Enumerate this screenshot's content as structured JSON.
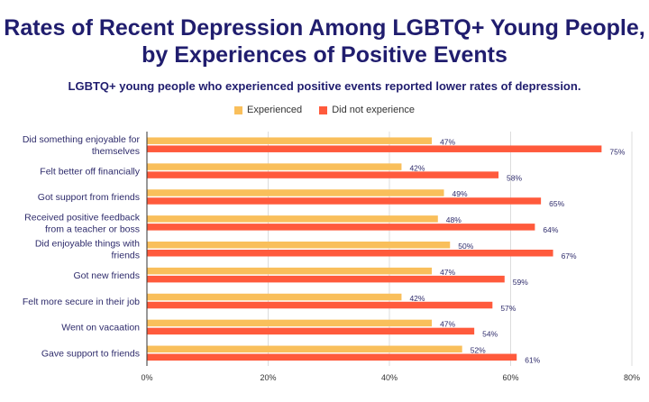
{
  "chart_data": {
    "type": "bar",
    "orientation": "horizontal",
    "title": "Rates of Recent Depression Among LGBTQ+ Young People, by Experiences of Positive Events",
    "subtitle": "LGBTQ+ young people who experienced positive events reported lower rates of depression.",
    "categories": [
      [
        "Did something enjoyable for",
        "themselves"
      ],
      [
        "Felt better off financially"
      ],
      [
        "Got support from friends"
      ],
      [
        "Received positive feedback",
        "from a teacher or boss"
      ],
      [
        "Did enjoyable things with",
        "friends"
      ],
      [
        "Got new friends"
      ],
      [
        "Felt more secure in their job"
      ],
      [
        "Went on vacaation"
      ],
      [
        "Gave support to friends"
      ]
    ],
    "series": [
      {
        "name": "Experienced",
        "color": "#f9bf5b",
        "values": [
          47,
          42,
          49,
          48,
          50,
          47,
          42,
          47,
          52
        ]
      },
      {
        "name": "Did not experience",
        "color": "#ff5a3c",
        "values": [
          75,
          58,
          65,
          64,
          67,
          59,
          57,
          54,
          61
        ]
      }
    ],
    "xlim": [
      0,
      80
    ],
    "xticks": [
      "0%",
      "20%",
      "40%",
      "60%",
      "80%"
    ],
    "grid": true,
    "legend": "top",
    "data_label_suffix": "%"
  }
}
